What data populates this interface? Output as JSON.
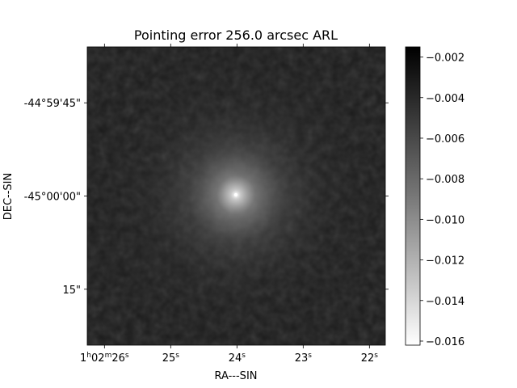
{
  "chart_data": {
    "type": "heatmap",
    "title": "Pointing error 256.0 arcsec ARL",
    "xlabel": "RA---SIN",
    "ylabel": "DEC--SIN",
    "colormap": "Greys",
    "image_description_values": {
      "center_value": -0.016,
      "edge_value": -0.0015,
      "peak_position_ra": "1h02m24s",
      "peak_position_dec": "-45°00'00\""
    },
    "x_ticks": [
      {
        "h": "1",
        "m": "02",
        "s": "26",
        "label_parts": [
          "1",
          "h",
          "02",
          "m",
          "26",
          "s"
        ],
        "ra_seconds": 26
      },
      {
        "label_parts": [
          "25",
          "s"
        ],
        "ra_seconds": 25
      },
      {
        "label_parts": [
          "24",
          "s"
        ],
        "ra_seconds": 24
      },
      {
        "label_parts": [
          "23",
          "s"
        ],
        "ra_seconds": 23
      },
      {
        "label_parts": [
          "22",
          "s"
        ],
        "ra_seconds": 22
      }
    ],
    "x_range_seconds": [
      26.26,
      21.76
    ],
    "y_ticks": [
      {
        "label": "-44°59'45\"",
        "dec_arcsec_offset": 15
      },
      {
        "label": "-45°00'00\"",
        "dec_arcsec_offset": 0
      },
      {
        "label": "15\"",
        "dec_arcsec_offset": -15
      }
    ],
    "y_range_arcsec_offset": [
      24.0,
      -24.0
    ],
    "colorbar": {
      "ticks": [
        "−0.002",
        "−0.004",
        "−0.006",
        "−0.008",
        "−0.010",
        "−0.012",
        "−0.014",
        "−0.016"
      ],
      "tick_values": [
        -0.002,
        -0.004,
        -0.006,
        -0.008,
        -0.01,
        -0.012,
        -0.014,
        -0.016
      ],
      "range": [
        -0.0162,
        -0.0015
      ]
    }
  }
}
